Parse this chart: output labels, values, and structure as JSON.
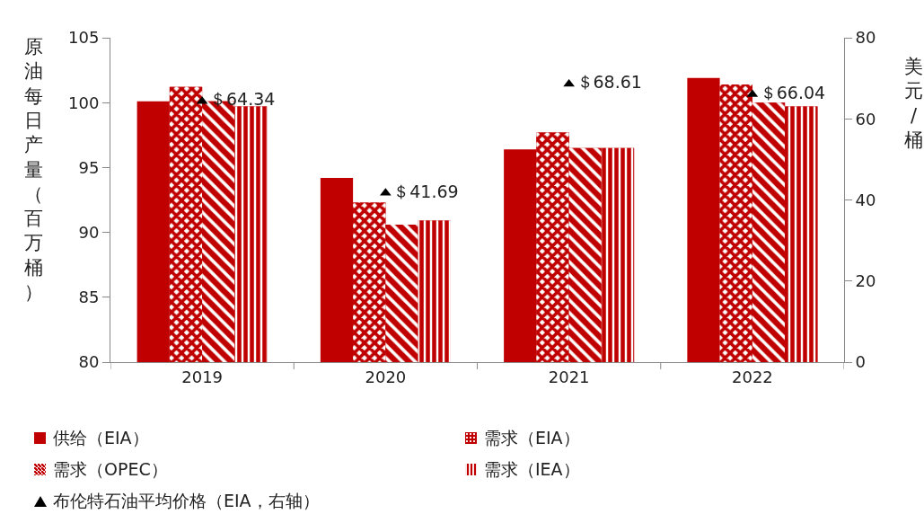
{
  "chart_data": {
    "type": "bar",
    "ylabel": "原油每日产量（百万桶）",
    "y2label": "美元/桶",
    "categories": [
      "2019",
      "2020",
      "2021",
      "2022"
    ],
    "series": [
      {
        "name": "供给（EIA）",
        "color": "#c00000",
        "values": [
          100.1,
          94.2,
          96.4,
          101.9
        ]
      },
      {
        "name": "需求（EIA）",
        "color": "#c00000",
        "values": [
          101.2,
          92.3,
          97.7,
          101.4
        ]
      },
      {
        "name": "需求（OPEC）",
        "color": "#c00000",
        "values": [
          100.1,
          90.6,
          96.5,
          100.0
        ]
      },
      {
        "name": "需求（IEA）",
        "color": "#c00000",
        "values": [
          99.7,
          90.9,
          96.5,
          99.7
        ]
      },
      {
        "name": "布伦特石油平均价格（EIA，右轴）",
        "type": "scatter",
        "axis": "y2",
        "color": "#000000",
        "values": [
          64.34,
          41.69,
          68.61,
          66.04
        ],
        "value_labels": [
          "＄64.34",
          "＄41.69",
          "＄68.61",
          "＄66.04"
        ]
      }
    ],
    "ylim": [
      80,
      105
    ],
    "yticks": [
      80,
      85,
      90,
      95,
      100,
      105
    ],
    "y2lim": [
      0,
      80
    ],
    "y2ticks": [
      0,
      20,
      40,
      60,
      80
    ],
    "marker": "triangle",
    "grid": false,
    "legend": "bottom"
  }
}
